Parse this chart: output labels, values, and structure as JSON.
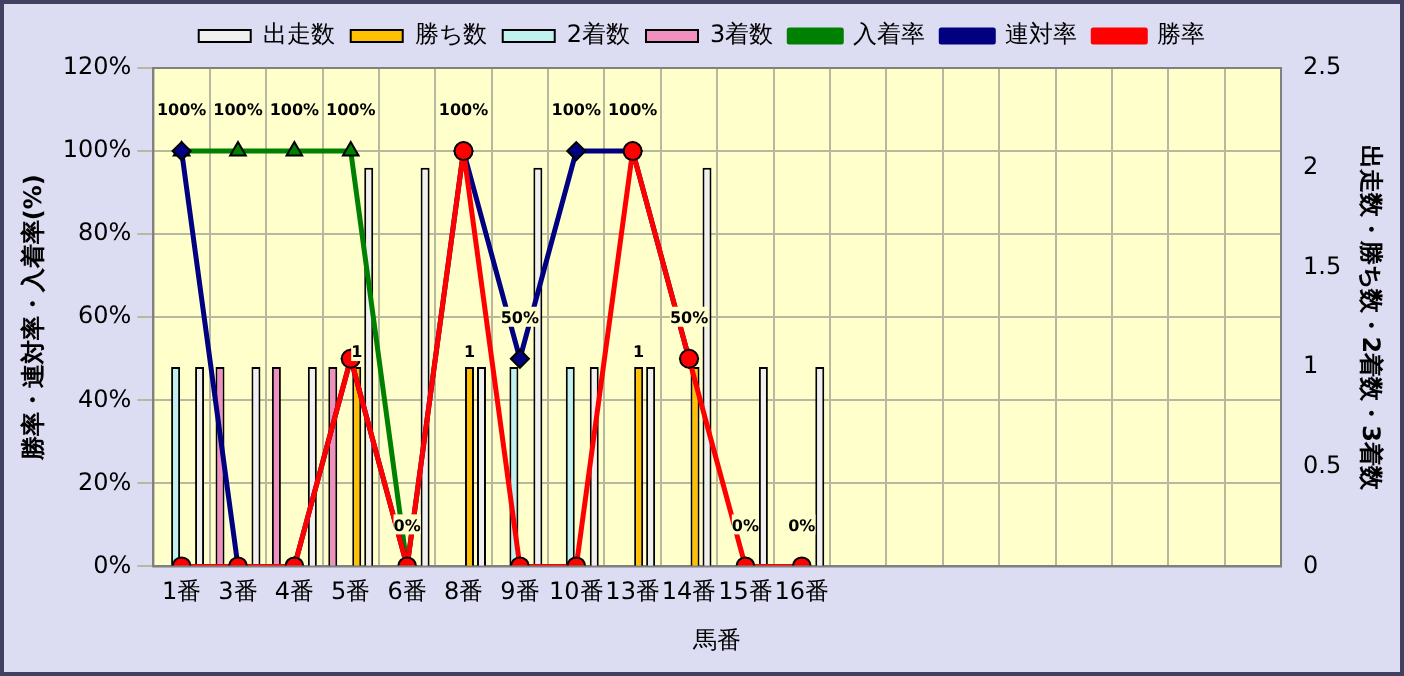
{
  "chart_data": {
    "type": "bar",
    "xlabel": "馬番",
    "ylabel": "勝率・連対率・入着率(%)",
    "y2label": "出走数・勝ち数・2着数・3着数",
    "categories": [
      "1番",
      "3番",
      "4番",
      "5番",
      "6番",
      "8番",
      "9番",
      "10番",
      "13番",
      "14番",
      "15番",
      "16番",
      null,
      null,
      null,
      null,
      null,
      null,
      null,
      null
    ],
    "series": [
      {
        "name": "出走数",
        "axis": "y2",
        "color": "#f0f0f0",
        "values": [
          1,
          1,
          1,
          2,
          2,
          1,
          2,
          1,
          1,
          2,
          1,
          1,
          null,
          null,
          null,
          null,
          null,
          null,
          null,
          null
        ]
      },
      {
        "name": "勝ち数",
        "axis": "y2",
        "color": "#ffc000",
        "values": [
          0,
          0,
          0,
          1,
          0,
          1,
          0,
          0,
          1,
          1,
          0,
          0,
          null,
          null,
          null,
          null,
          null,
          null,
          null,
          null
        ],
        "value_labels": [
          null,
          null,
          null,
          "1",
          null,
          "1",
          null,
          null,
          "1",
          null,
          null,
          null,
          null,
          null,
          null,
          null,
          null,
          null,
          null,
          null
        ]
      },
      {
        "name": "2着数",
        "axis": "y2",
        "color": "#c0f0f0",
        "values": [
          1,
          0,
          0,
          0,
          0,
          0,
          1,
          1,
          0,
          0,
          0,
          0,
          null,
          null,
          null,
          null,
          null,
          null,
          null,
          null
        ]
      },
      {
        "name": "3着数",
        "axis": "y2",
        "color": "#f090c0",
        "values": [
          0,
          1,
          1,
          1,
          0,
          0,
          0,
          0,
          0,
          0,
          0,
          0,
          null,
          null,
          null,
          null,
          null,
          null,
          null,
          null
        ]
      },
      {
        "name": "入着率",
        "type": "line",
        "color": "#008000",
        "marker": "triangle",
        "values": [
          100,
          100,
          100,
          100,
          0,
          null,
          null,
          null,
          null,
          null,
          null,
          null,
          null,
          null,
          null,
          null,
          null,
          null,
          null,
          null
        ],
        "value_labels": [
          "100%",
          "100%",
          "100%",
          "100%",
          "0%",
          "100%",
          "50%",
          "100%",
          "100%",
          "50%",
          "0%",
          "0%",
          null,
          null,
          null,
          null,
          null,
          null,
          null,
          null
        ]
      },
      {
        "name": "連対率",
        "type": "line",
        "color": "#000080",
        "marker": "diamond",
        "values": [
          100,
          0,
          0,
          50,
          0,
          100,
          50,
          100,
          100,
          50,
          null,
          null,
          null,
          null,
          null,
          null,
          null,
          null,
          null,
          null
        ]
      },
      {
        "name": "勝率",
        "type": "line",
        "color": "#ff0000",
        "marker": "circle",
        "values": [
          0,
          0,
          0,
          50,
          0,
          100,
          0,
          0,
          100,
          50,
          0,
          0,
          null,
          null,
          null,
          null,
          null,
          null,
          null,
          null
        ]
      }
    ],
    "ylim": [
      0,
      120
    ],
    "yticks": [
      {
        "value": 0,
        "label": "0%"
      },
      {
        "value": 20,
        "label": "20%"
      },
      {
        "value": 40,
        "label": "40%"
      },
      {
        "value": 60,
        "label": "60%"
      },
      {
        "value": 80,
        "label": "80%"
      },
      {
        "value": 100,
        "label": "100%"
      },
      {
        "value": 120,
        "label": "120%"
      }
    ],
    "y2lim": [
      0,
      2.5
    ],
    "y2ticks": [
      0,
      0.5,
      1,
      1.5,
      2,
      2.5
    ],
    "grid": true,
    "legend": "top",
    "line_style": "solid"
  }
}
